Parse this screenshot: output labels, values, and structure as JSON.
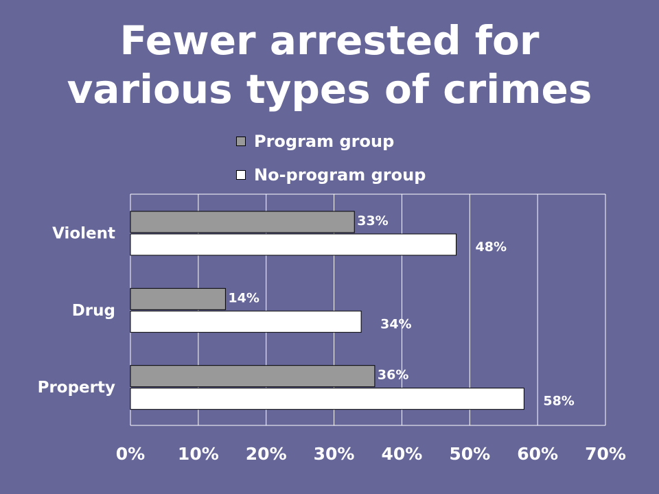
{
  "title_lines": [
    "Fewer arrested for",
    "various types of crimes"
  ],
  "colors": {
    "background": "#666699",
    "program": "#999999",
    "no_program": "#ffffff",
    "outline": "#000000",
    "gridline": "#ffffff"
  },
  "chart_data": {
    "type": "bar",
    "orientation": "horizontal",
    "title": "Fewer arrested for various types of crimes",
    "categories": [
      "Violent",
      "Drug",
      "Property"
    ],
    "series": [
      {
        "name": "Program group",
        "values": [
          33,
          14,
          36
        ]
      },
      {
        "name": "No-program group",
        "values": [
          48,
          34,
          58
        ]
      }
    ],
    "data_labels": [
      [
        "33%",
        "14%",
        "36%"
      ],
      [
        "48%",
        "34%",
        "58%"
      ]
    ],
    "xlim": [
      0,
      70
    ],
    "x_ticks": [
      0,
      10,
      20,
      30,
      40,
      50,
      60,
      70
    ],
    "x_tick_labels": [
      "0%",
      "10%",
      "20%",
      "30%",
      "40%",
      "50%",
      "60%",
      "70%"
    ],
    "grid": true,
    "legend_position": "top"
  }
}
